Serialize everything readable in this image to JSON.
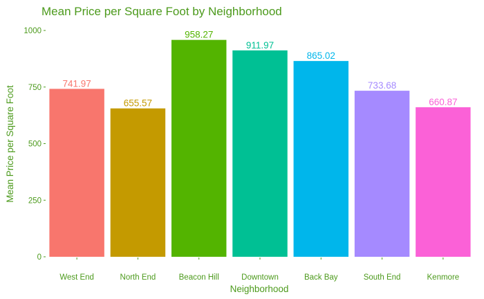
{
  "chart_data": {
    "type": "bar",
    "title": "Mean Price per Square Foot by Neighborhood",
    "xlabel": "Neighborhood",
    "ylabel": "Mean Price per Square Foot",
    "ylim": [
      0,
      1000
    ],
    "yticks": [
      0,
      250,
      500,
      750,
      1000
    ],
    "grid": false,
    "categories": [
      "West End",
      "North End",
      "Beacon Hill",
      "Downtown",
      "Back Bay",
      "South End",
      "Kenmore"
    ],
    "values": [
      741.97,
      655.57,
      958.27,
      911.97,
      865.02,
      733.68,
      660.87
    ],
    "value_labels": [
      "741.97",
      "655.57",
      "958.27",
      "911.97",
      "865.02",
      "733.68",
      "660.87"
    ],
    "colors": [
      "#F8766D",
      "#C49A00",
      "#53B400",
      "#00C094",
      "#00B6EB",
      "#A58AFF",
      "#FB61D7"
    ],
    "text_color": "#4c9a1c"
  }
}
